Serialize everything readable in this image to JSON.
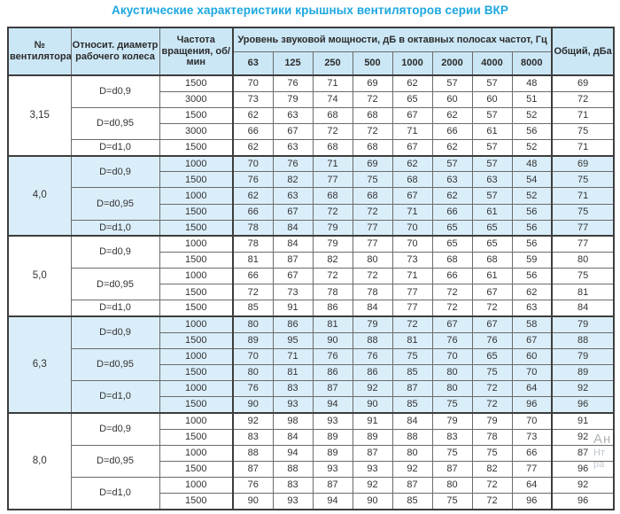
{
  "title": "Акустические характеристики крышных вентиляторов серии ВКР",
  "colors": {
    "title_blue": "#1ba7e0",
    "header_bg": "#cbe7f6",
    "shaded_group_bg": "#daeefa",
    "border_dark": "#3d3d3d",
    "border_light": "#6b6b6b",
    "text": "#333333"
  },
  "watermark": {
    "lines": [
      "Ан",
      "Нт",
      "ра"
    ]
  },
  "table": {
    "headers": {
      "fan": "№ вентилятора",
      "diameter": "Относит. диаметр рабочего колеса",
      "speed": "Частота вращения, об/мин",
      "spl_group": "Уровень звуковой мощности, дБ в октавных полосах частот, Гц",
      "freqs": [
        "63",
        "125",
        "250",
        "500",
        "1000",
        "2000",
        "4000",
        "8000"
      ],
      "total": "Общий, дБа"
    },
    "groups": [
      {
        "fan": "3,15",
        "shaded": false,
        "blocks": [
          {
            "diameter": "D=d0,9",
            "rows": [
              {
                "speed": "1500",
                "values": [
                  70,
                  76,
                  71,
                  69,
                  62,
                  57,
                  57,
                  48
                ],
                "total": 69
              },
              {
                "speed": "3000",
                "values": [
                  73,
                  79,
                  74,
                  72,
                  65,
                  60,
                  60,
                  51
                ],
                "total": 72
              }
            ]
          },
          {
            "diameter": "D=d0,95",
            "rows": [
              {
                "speed": "1500",
                "values": [
                  62,
                  63,
                  68,
                  68,
                  67,
                  62,
                  57,
                  52
                ],
                "total": 71
              },
              {
                "speed": "3000",
                "values": [
                  66,
                  67,
                  72,
                  72,
                  71,
                  66,
                  61,
                  56
                ],
                "total": 75
              }
            ]
          },
          {
            "diameter": "D=d1,0",
            "rows": [
              {
                "speed": "1500",
                "values": [
                  62,
                  63,
                  68,
                  68,
                  67,
                  62,
                  57,
                  52
                ],
                "total": 71
              }
            ]
          }
        ]
      },
      {
        "fan": "4,0",
        "shaded": true,
        "blocks": [
          {
            "diameter": "D=d0,9",
            "rows": [
              {
                "speed": "1000",
                "values": [
                  70,
                  76,
                  71,
                  69,
                  62,
                  57,
                  57,
                  48
                ],
                "total": 69
              },
              {
                "speed": "1500",
                "values": [
                  76,
                  82,
                  77,
                  75,
                  68,
                  63,
                  63,
                  54
                ],
                "total": 75
              }
            ]
          },
          {
            "diameter": "D=d0,95",
            "rows": [
              {
                "speed": "1000",
                "values": [
                  62,
                  63,
                  68,
                  68,
                  67,
                  62,
                  57,
                  52
                ],
                "total": 71
              },
              {
                "speed": "1500",
                "values": [
                  66,
                  67,
                  72,
                  72,
                  71,
                  66,
                  61,
                  56
                ],
                "total": 75
              }
            ]
          },
          {
            "diameter": "D=d1,0",
            "rows": [
              {
                "speed": "1500",
                "values": [
                  78,
                  84,
                  79,
                  77,
                  70,
                  65,
                  65,
                  56
                ],
                "total": 77
              }
            ]
          }
        ]
      },
      {
        "fan": "5,0",
        "shaded": false,
        "blocks": [
          {
            "diameter": "D=d0,9",
            "rows": [
              {
                "speed": "1000",
                "values": [
                  78,
                  84,
                  79,
                  77,
                  70,
                  65,
                  65,
                  56
                ],
                "total": 77
              },
              {
                "speed": "1500",
                "values": [
                  81,
                  87,
                  82,
                  80,
                  73,
                  68,
                  68,
                  59
                ],
                "total": 80
              }
            ]
          },
          {
            "diameter": "D=d0,95",
            "rows": [
              {
                "speed": "1000",
                "values": [
                  66,
                  67,
                  72,
                  72,
                  71,
                  66,
                  61,
                  56
                ],
                "total": 75
              },
              {
                "speed": "1500",
                "values": [
                  72,
                  73,
                  78,
                  78,
                  77,
                  72,
                  67,
                  62
                ],
                "total": 81
              }
            ]
          },
          {
            "diameter": "D=d1,0",
            "rows": [
              {
                "speed": "1500",
                "values": [
                  85,
                  91,
                  86,
                  84,
                  77,
                  72,
                  72,
                  63
                ],
                "total": 84
              }
            ]
          }
        ]
      },
      {
        "fan": "6,3",
        "shaded": true,
        "blocks": [
          {
            "diameter": "D=d0,9",
            "rows": [
              {
                "speed": "1000",
                "values": [
                  80,
                  86,
                  81,
                  79,
                  72,
                  67,
                  67,
                  58
                ],
                "total": 79
              },
              {
                "speed": "1500",
                "values": [
                  89,
                  95,
                  90,
                  88,
                  81,
                  76,
                  76,
                  67
                ],
                "total": 88
              }
            ]
          },
          {
            "diameter": "D=d0,95",
            "rows": [
              {
                "speed": "1000",
                "values": [
                  70,
                  71,
                  76,
                  76,
                  75,
                  70,
                  65,
                  60
                ],
                "total": 79
              },
              {
                "speed": "1500",
                "values": [
                  80,
                  81,
                  86,
                  86,
                  85,
                  80,
                  75,
                  70
                ],
                "total": 89
              }
            ]
          },
          {
            "diameter": "D=d1,0",
            "rows": [
              {
                "speed": "1000",
                "values": [
                  76,
                  83,
                  87,
                  92,
                  87,
                  80,
                  72,
                  64
                ],
                "total": 92
              },
              {
                "speed": "1500",
                "values": [
                  90,
                  93,
                  94,
                  90,
                  85,
                  75,
                  72,
                  96
                ],
                "total": 96
              }
            ]
          }
        ]
      },
      {
        "fan": "8,0",
        "shaded": false,
        "blocks": [
          {
            "diameter": "D=d0,9",
            "rows": [
              {
                "speed": "1000",
                "values": [
                  92,
                  98,
                  93,
                  91,
                  84,
                  79,
                  79,
                  70
                ],
                "total": 91
              },
              {
                "speed": "1500",
                "values": [
                  83,
                  84,
                  89,
                  89,
                  88,
                  83,
                  78,
                  73
                ],
                "total": 92
              }
            ]
          },
          {
            "diameter": "D=d0,95",
            "rows": [
              {
                "speed": "1000",
                "values": [
                  88,
                  94,
                  89,
                  87,
                  80,
                  75,
                  75,
                  66
                ],
                "total": 87
              },
              {
                "speed": "1500",
                "values": [
                  87,
                  88,
                  93,
                  93,
                  92,
                  87,
                  82,
                  77
                ],
                "total": 96
              }
            ]
          },
          {
            "diameter": "D=d1,0",
            "rows": [
              {
                "speed": "1000",
                "values": [
                  76,
                  83,
                  87,
                  92,
                  87,
                  80,
                  72,
                  64
                ],
                "total": 92
              },
              {
                "speed": "1500",
                "values": [
                  90,
                  93,
                  94,
                  90,
                  85,
                  75,
                  72,
                  96
                ],
                "total": 96
              }
            ]
          }
        ]
      }
    ]
  }
}
